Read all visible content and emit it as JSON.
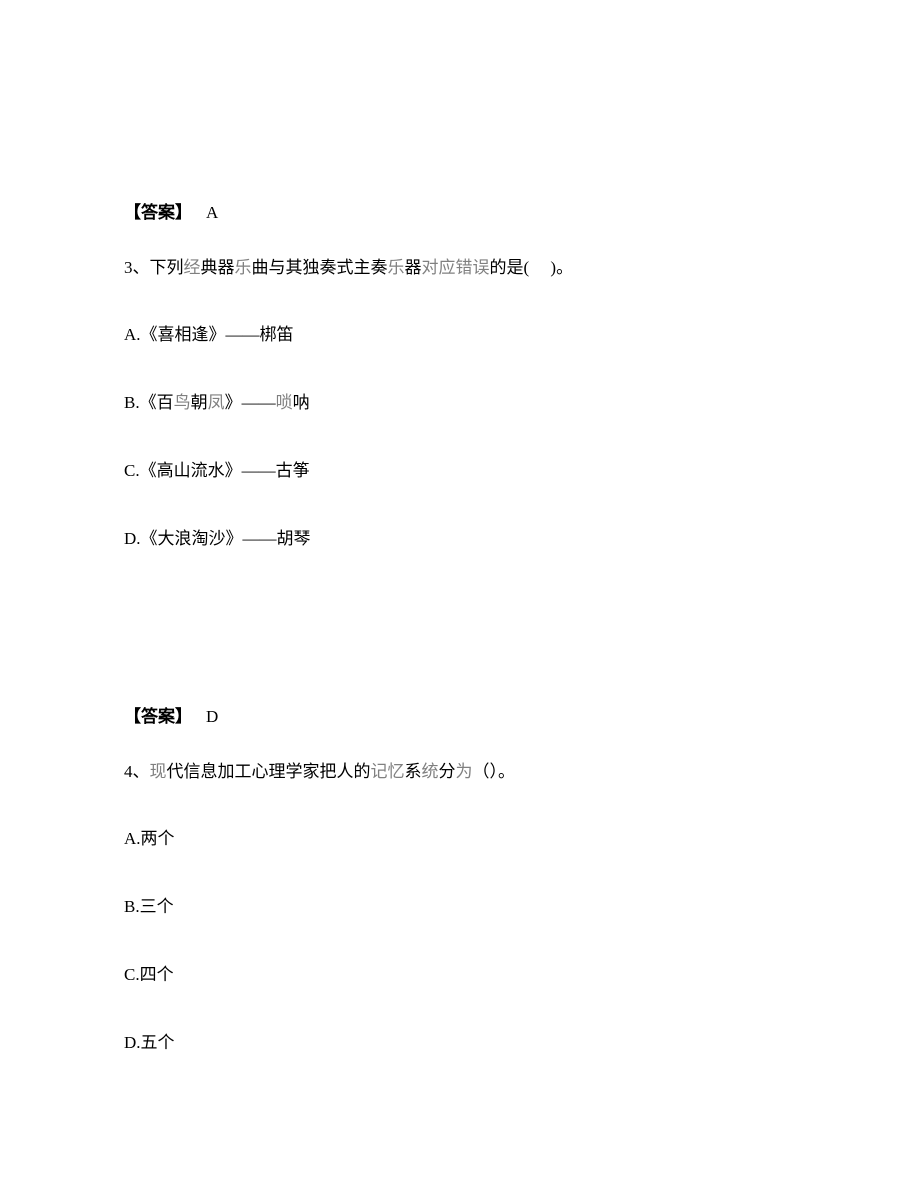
{
  "answer2": {
    "label": "【答案】",
    "value": "A"
  },
  "question3": {
    "number": "3、",
    "stem_part1": "下列",
    "stem_gray1": "经",
    "stem_part2": "典器",
    "stem_gray2": "乐",
    "stem_part3": "曲与其独奏式主奏",
    "stem_gray3": "乐",
    "stem_part4": "器",
    "stem_gray4": "对应错误",
    "stem_part5": "的是(　    )。",
    "optionA": "A.《喜相逢》——梆笛",
    "optionB_part1": "B.《百",
    "optionB_gray1": "鸟",
    "optionB_part2": "朝",
    "optionB_gray2": "凤",
    "optionB_part3": "》——",
    "optionB_gray3": "唢",
    "optionB_part4": "呐",
    "optionC": "C.《高山流水》——古筝",
    "optionD": "D.《大浪淘沙》——胡琴"
  },
  "answer3": {
    "label": "【答案】",
    "value": "D"
  },
  "question4": {
    "number": "4、",
    "stem_gray1": "现",
    "stem_part1": "代信息加工心理学家把人的",
    "stem_gray2": "记忆",
    "stem_part2": "系",
    "stem_gray3": "统",
    "stem_part3": "分",
    "stem_gray4": "为",
    "stem_part4": "（）。",
    "optionA": "A.两个",
    "optionB": "B.三个",
    "optionC": "C.四个",
    "optionD": "D.五个"
  }
}
